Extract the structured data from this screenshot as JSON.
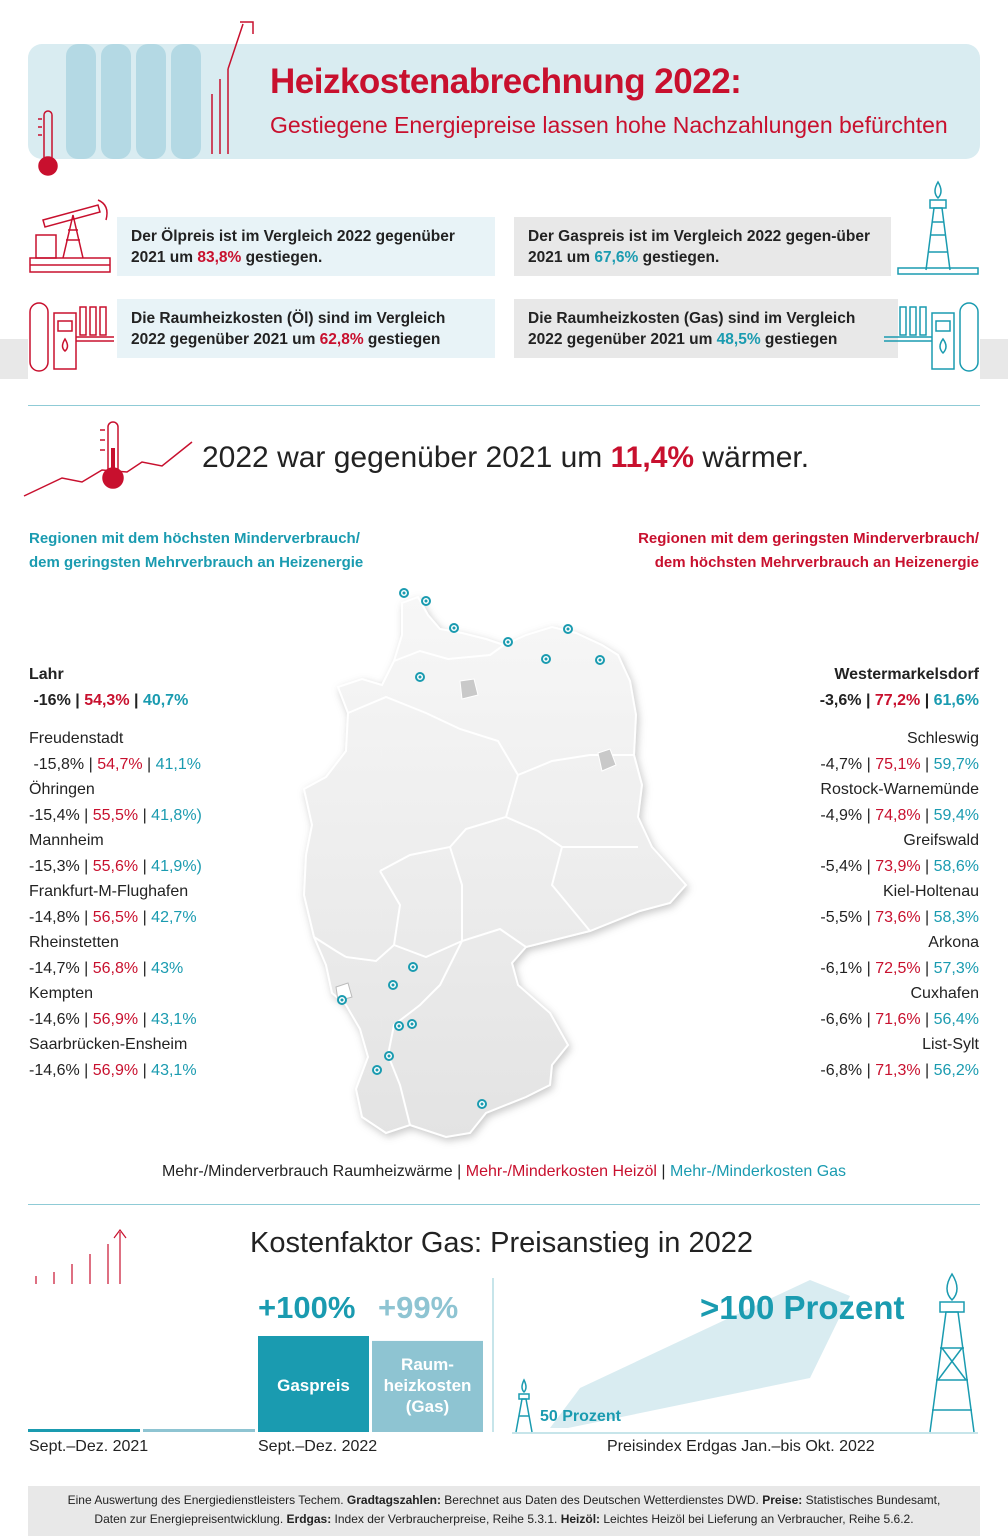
{
  "header": {
    "title": "Heizkostenabrechnung 2022:",
    "subtitle": "Gestiegene Energiepreise lassen hohe Nachzahlungen befürchten"
  },
  "facts": {
    "oil_price": {
      "pre": "Der Ölpreis ist im Vergleich 2022 gegenüber 2021 um ",
      "value": "83,8%",
      "post": " gestiegen."
    },
    "gas_price": {
      "pre": "Der Gaspreis ist im Vergleich 2022 gegen-über 2021 um ",
      "value": "67,6%",
      "post": " gestiegen."
    },
    "oil_heating": {
      "pre": "Die Raumheizkosten (Öl) sind im Vergleich 2022 gegenüber 2021 um ",
      "value": "62,8%",
      "post": " gestiegen"
    },
    "gas_heating": {
      "pre": "Die Raumheizkosten (Gas) sind im Vergleich 2022 gegenüber 2021 um ",
      "value": "48,5%",
      "post": " gestiegen"
    }
  },
  "warmer": {
    "pre": "2022 war gegenüber 2021 um ",
    "value": "11,4%",
    "post": " wärmer."
  },
  "left_heading": {
    "line1": "Regionen mit dem höchsten Minderverbrauch/",
    "line2": "dem geringsten Mehrverbrauch an Heizenergie"
  },
  "right_heading": {
    "line1": "Regionen mit dem geringsten Minderverbrauch/",
    "line2": "dem höchsten Mehrverbrauch an Heizenergie"
  },
  "left_top": {
    "name": "Lahr",
    "a": "-16%",
    "b": "54,3%",
    "c": "40,7%"
  },
  "right_top": {
    "name": "Westermarkelsdorf",
    "a": "-3,6%",
    "b": "77,2%",
    "c": "61,6%"
  },
  "left_list": [
    {
      "name": "Freudenstadt",
      "a": "-15,8%",
      "b": "54,7%",
      "c": "41,1%"
    },
    {
      "name": "Öhringen",
      "a": "-15,4%",
      "b": "55,5%",
      "c": "41,8%)"
    },
    {
      "name": "Mannheim",
      "a": "-15,3%",
      "b": "55,6%",
      "c": "41,9%)"
    },
    {
      "name": "Frankfurt-M-Flughafen",
      "a": "-14,8%",
      "b": "56,5%",
      "c": "42,7%"
    },
    {
      "name": "Rheinstetten",
      "a": "-14,7%",
      "b": "56,8%",
      "c": "43%"
    },
    {
      "name": "Kempten",
      "a": "-14,6%",
      "b": "56,9%",
      "c": "43,1%"
    },
    {
      "name": "Saarbrücken-Ensheim",
      "a": "-14,6%",
      "b": "56,9%",
      "c": "43,1%"
    }
  ],
  "right_list": [
    {
      "name": "Schleswig",
      "a": "-4,7%",
      "b": "75,1%",
      "c": "59,7%"
    },
    {
      "name": "Rostock-Warnemünde",
      "a": "-4,9%",
      "b": "74,8%",
      "c": "59,4%"
    },
    {
      "name": "Greifswald",
      "a": "-5,4%",
      "b": "73,9%",
      "c": "58,6%"
    },
    {
      "name": "Kiel-Holtenau",
      "a": "-5,5%",
      "b": "73,6%",
      "c": "58,3%"
    },
    {
      "name": "Arkona",
      "a": "-6,1%",
      "b": "72,5%",
      "c": "57,3%"
    },
    {
      "name": "Cuxhafen",
      "a": "-6,6%",
      "b": "71,6%",
      "c": "56,4%"
    },
    {
      "name": "List-Sylt",
      "a": "-6,8%",
      "b": "71,3%",
      "c": "56,2%"
    }
  ],
  "legend": {
    "a": "Mehr-/Minderverbrauch Raumheizwärme",
    "b": "Mehr-/Minderkosten Heizöl",
    "c": "Mehr-/Minderkosten Gas"
  },
  "gas_section": {
    "title": "Kostenfaktor Gas: Preisanstieg in 2022",
    "pct_gas": "+100%",
    "pct_heating": "+99%",
    "bar_gas": "Gaspreis",
    "bar_heating_1": "Raum-",
    "bar_heating_2": "heizkosten",
    "bar_heating_3": "(Gas)",
    "index_big": ">100 Prozent",
    "index_small": "50 Prozent",
    "label_2021": "Sept.–Dez. 2021",
    "label_2022": "Sept.–Dez. 2022",
    "label_index": "Preisindex Erdgas Jan.–bis Okt. 2022"
  },
  "chart_data": {
    "type": "bar",
    "categories": [
      "Sept.–Dez. 2021",
      "Sept.–Dez. 2022"
    ],
    "series": [
      {
        "name": "Gaspreis",
        "values": [
          null,
          100
        ]
      },
      {
        "name": "Raumheizkosten (Gas)",
        "values": [
          null,
          99
        ]
      }
    ]
  },
  "footer": {
    "l1_a": "Eine Auswertung des Energiedienstleisters Techem. ",
    "l1_b": "Gradtagszahlen:",
    "l1_c": " Berechnet aus Daten des Deutschen Wetterdienstes DWD. ",
    "l1_d": "Preise:",
    "l1_e": " Statistisches Bundesamt,",
    "l2_a": "Daten zur Energiepreisentwicklung. ",
    "l2_b": "Erdgas:",
    "l2_c": " Index der Verbraucherpreise, Reihe 5.3.1. ",
    "l2_d": "Heizöl:",
    "l2_e": " Leichtes Heizöl bei Lieferung an Verbraucher, Reihe 5.6.2."
  },
  "colors": {
    "red": "#c8102e",
    "teal": "#1a9bb0",
    "light_teal": "#8ec4d2",
    "band": "#d9ecf1"
  }
}
